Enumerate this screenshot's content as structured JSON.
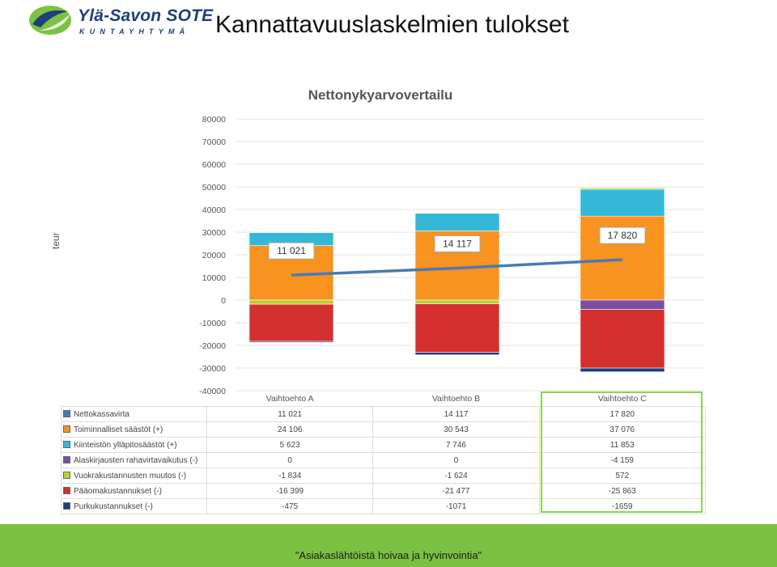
{
  "header": {
    "logo_name": "Ylä-Savon SOTE",
    "logo_sub": "KUNTAYHTYMÄ",
    "page_title": "Kannattavuuslaskelmien tulokset"
  },
  "footer": {
    "slogan": "\"Asiakaslähtöistä hoivaa ja hyvinvointia\""
  },
  "colors": {
    "brand_green": "#7cc242",
    "brand_blue": "#1d3f7a",
    "highlight_border": "#8fd14f",
    "line": "#4a7ab5"
  },
  "chart_data": {
    "type": "bar",
    "stacked": true,
    "title": "Nettonykyarvovertailu",
    "ylabel": "teur",
    "xlabel": "",
    "ylim": [
      -40000,
      80000
    ],
    "yticks": [
      80000,
      70000,
      60000,
      50000,
      40000,
      30000,
      20000,
      10000,
      0,
      -10000,
      -20000,
      -30000,
      -40000
    ],
    "ytick_labels": [
      "80000",
      "70000",
      "60000",
      "50000",
      "40000",
      "30000",
      "20000",
      "10000",
      "0",
      "-10000",
      "-20000",
      "-30000",
      "-40000"
    ],
    "categories": [
      "Vaihtoehto A",
      "Vaihtoehto B",
      "Vaihtoehto C"
    ],
    "grid": true,
    "legend": "table-below",
    "series": [
      {
        "name": "Nettokassavirta",
        "type": "line",
        "color": "#4a7ab5",
        "values": [
          11021,
          14117,
          17820
        ],
        "labels": [
          "11 021",
          "14 117",
          "17 820"
        ]
      },
      {
        "name": "Toiminnalliset säästöt (+)",
        "color": "#f7931e",
        "values": [
          24106,
          30543,
          37076
        ],
        "labels": [
          "24 106",
          "30 543",
          "37 076"
        ]
      },
      {
        "name": "Kiinteistön ylläpitosäästöt (+)",
        "color": "#33b8d8",
        "values": [
          5623,
          7746,
          11853
        ],
        "labels": [
          "5 623",
          "7 746",
          "11 853"
        ]
      },
      {
        "name": "Alaskirjausten rahavirtavaikutus (-)",
        "color": "#7a4fa3",
        "values": [
          0,
          0,
          -4159
        ],
        "labels": [
          "0",
          "0",
          "-4 159"
        ]
      },
      {
        "name": "Vuokrakustannusten muutos (-)",
        "color": "#b5d334",
        "values": [
          -1834,
          -1624,
          572
        ],
        "labels": [
          "-1 834",
          "-1 624",
          "572"
        ]
      },
      {
        "name": "Pääomakustannukset (-)",
        "color": "#d42f2f",
        "values": [
          -16399,
          -21477,
          -25863
        ],
        "labels": [
          "-16 399",
          "-21 477",
          "-25 863"
        ]
      },
      {
        "name": "Purkukustannukset (-)",
        "color": "#1f3f77",
        "values": [
          -475,
          -1071,
          -1659
        ],
        "labels": [
          "-475",
          "-1071",
          "-1659"
        ]
      }
    ]
  }
}
